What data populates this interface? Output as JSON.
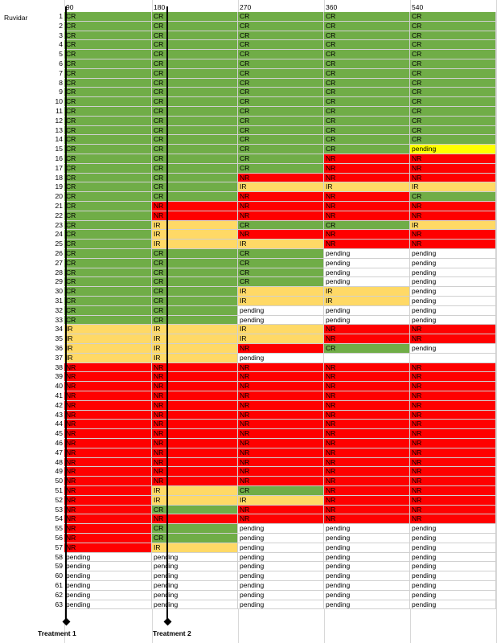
{
  "sheet_label": "Ruvidar",
  "columns": [
    "90",
    "180",
    "270",
    "360",
    "540"
  ],
  "treatments": [
    "Treatment 1",
    "Treatment 2"
  ],
  "colors": {
    "CR": "#70ad47",
    "NR": "#ff0000",
    "IR": "#ffd966",
    "pending_highlight": "#ffff00",
    "blank": "#ffffff"
  },
  "rows": [
    {
      "n": "1",
      "c": [
        "CR",
        "CR",
        "CR",
        "CR",
        "CR"
      ]
    },
    {
      "n": "2",
      "c": [
        "CR",
        "CR",
        "CR",
        "CR",
        "CR"
      ]
    },
    {
      "n": "3",
      "c": [
        "CR",
        "CR",
        "CR",
        "CR",
        "CR"
      ]
    },
    {
      "n": "4",
      "c": [
        "CR",
        "CR",
        "CR",
        "CR",
        "CR"
      ]
    },
    {
      "n": "5",
      "c": [
        "CR",
        "CR",
        "CR",
        "CR",
        "CR"
      ]
    },
    {
      "n": "6",
      "c": [
        "CR",
        "CR",
        "CR",
        "CR",
        "CR"
      ]
    },
    {
      "n": "7",
      "c": [
        "CR",
        "CR",
        "CR",
        "CR",
        "CR"
      ]
    },
    {
      "n": "8",
      "c": [
        "CR",
        "CR",
        "CR",
        "CR",
        "CR"
      ]
    },
    {
      "n": "9",
      "c": [
        "CR",
        "CR",
        "CR",
        "CR",
        "CR"
      ]
    },
    {
      "n": "10",
      "c": [
        "CR",
        "CR",
        "CR",
        "CR",
        "CR"
      ]
    },
    {
      "n": "11",
      "c": [
        "CR",
        "CR",
        "CR",
        "CR",
        "CR"
      ]
    },
    {
      "n": "12",
      "c": [
        "CR",
        "CR",
        "CR",
        "CR",
        "CR"
      ]
    },
    {
      "n": "13",
      "c": [
        "CR",
        "CR",
        "CR",
        "CR",
        "CR"
      ]
    },
    {
      "n": "14",
      "c": [
        "CR",
        "CR",
        "CR",
        "CR",
        "CR"
      ]
    },
    {
      "n": "15",
      "c": [
        "CR",
        "CR",
        "CR",
        "CR",
        "pending*"
      ]
    },
    {
      "n": "16",
      "c": [
        "CR",
        "CR",
        "CR",
        "NR",
        "NR"
      ]
    },
    {
      "n": "17",
      "c": [
        "CR",
        "CR",
        "CR",
        "NR",
        "NR"
      ]
    },
    {
      "n": "18",
      "c": [
        "CR",
        "CR",
        "NR",
        "NR",
        "NR"
      ]
    },
    {
      "n": "19",
      "c": [
        "CR",
        "CR",
        "IR",
        "IR",
        "IR"
      ]
    },
    {
      "n": "20",
      "c": [
        "CR",
        "CR",
        "NR",
        "NR",
        "CR"
      ]
    },
    {
      "n": "21",
      "c": [
        "CR",
        "NR",
        "NR",
        "NR",
        "NR"
      ]
    },
    {
      "n": "22",
      "c": [
        "CR",
        "NR",
        "NR",
        "NR",
        "NR"
      ]
    },
    {
      "n": "23",
      "c": [
        "CR",
        "IR",
        "CR",
        "CR",
        "IR"
      ]
    },
    {
      "n": "24",
      "c": [
        "CR",
        "IR",
        "NR",
        "NR",
        "NR"
      ]
    },
    {
      "n": "25",
      "c": [
        "CR",
        "IR",
        "IR",
        "NR",
        "NR"
      ]
    },
    {
      "n": "26",
      "c": [
        "CR",
        "CR",
        "CR",
        "pending",
        "pending"
      ]
    },
    {
      "n": "27",
      "c": [
        "CR",
        "CR",
        "CR",
        "pending",
        "pending"
      ]
    },
    {
      "n": "28",
      "c": [
        "CR",
        "CR",
        "CR",
        "pending",
        "pending"
      ]
    },
    {
      "n": "29",
      "c": [
        "CR",
        "CR",
        "CR",
        "pending",
        "pending"
      ]
    },
    {
      "n": "30",
      "c": [
        "CR",
        "CR",
        "IR",
        "IR",
        "pending"
      ]
    },
    {
      "n": "31",
      "c": [
        "CR",
        "CR",
        "IR",
        "IR",
        "pending"
      ]
    },
    {
      "n": "32",
      "c": [
        "CR",
        "CR",
        "pending",
        "pending",
        "pending"
      ]
    },
    {
      "n": "33",
      "c": [
        "CR",
        "CR",
        "pending",
        "pending",
        "pending"
      ]
    },
    {
      "n": "34",
      "c": [
        "IR",
        "IR",
        "IR",
        "NR",
        "NR"
      ]
    },
    {
      "n": "35",
      "c": [
        "IR",
        "IR",
        "IR",
        "NR",
        "NR"
      ]
    },
    {
      "n": "36",
      "c": [
        "IR",
        "IR",
        "NR",
        "CR",
        "pending"
      ]
    },
    {
      "n": "37",
      "c": [
        "IR",
        "IR",
        "pending",
        "",
        ""
      ]
    },
    {
      "n": "38",
      "c": [
        "NR",
        "NR",
        "NR",
        "NR",
        "NR"
      ]
    },
    {
      "n": "39",
      "c": [
        "NR",
        "NR",
        "NR",
        "NR",
        "NR"
      ]
    },
    {
      "n": "40",
      "c": [
        "NR",
        "NR",
        "NR",
        "NR",
        "NR"
      ]
    },
    {
      "n": "41",
      "c": [
        "NR",
        "NR",
        "NR",
        "NR",
        "NR"
      ]
    },
    {
      "n": "42",
      "c": [
        "NR",
        "NR",
        "NR",
        "NR",
        "NR"
      ]
    },
    {
      "n": "43",
      "c": [
        "NR",
        "NR",
        "NR",
        "NR",
        "NR"
      ]
    },
    {
      "n": "44",
      "c": [
        "NR",
        "NR",
        "NR",
        "NR",
        "NR"
      ]
    },
    {
      "n": "45",
      "c": [
        "NR",
        "NR",
        "NR",
        "NR",
        "NR"
      ]
    },
    {
      "n": "46",
      "c": [
        "NR",
        "NR",
        "NR",
        "NR",
        "NR"
      ]
    },
    {
      "n": "47",
      "c": [
        "NR",
        "NR",
        "NR",
        "NR",
        "NR"
      ]
    },
    {
      "n": "48",
      "c": [
        "NR",
        "NR",
        "NR",
        "NR",
        "NR"
      ]
    },
    {
      "n": "49",
      "c": [
        "NR",
        "NR",
        "NR",
        "NR",
        "NR"
      ]
    },
    {
      "n": "50",
      "c": [
        "NR",
        "NR",
        "NR",
        "NR",
        "NR"
      ]
    },
    {
      "n": "51",
      "c": [
        "NR",
        "IR",
        "CR",
        "NR",
        "NR"
      ]
    },
    {
      "n": "52",
      "c": [
        "NR",
        "IR",
        "IR",
        "NR",
        "NR"
      ]
    },
    {
      "n": "53",
      "c": [
        "NR",
        "CR",
        "NR",
        "NR",
        "NR"
      ]
    },
    {
      "n": "54",
      "c": [
        "NR",
        "NR",
        "NR",
        "NR",
        "NR"
      ]
    },
    {
      "n": "55",
      "c": [
        "NR",
        "CR",
        "pending",
        "pending",
        "pending"
      ]
    },
    {
      "n": "56",
      "c": [
        "NR",
        "CR",
        "pending",
        "pending",
        "pending"
      ]
    },
    {
      "n": "57",
      "c": [
        "NR",
        "IR",
        "pending",
        "pending",
        "pending"
      ]
    },
    {
      "n": "58",
      "c": [
        "pending",
        "pending",
        "pending",
        "pending",
        "pending"
      ]
    },
    {
      "n": "59",
      "c": [
        "pending",
        "pending",
        "pending",
        "pending",
        "pending"
      ]
    },
    {
      "n": "60",
      "c": [
        "pending",
        "pending",
        "pending",
        "pending",
        "pending"
      ]
    },
    {
      "n": "61",
      "c": [
        "pending",
        "pending",
        "pending",
        "pending",
        "pending"
      ]
    },
    {
      "n": "62",
      "c": [
        "pending",
        "pending",
        "pending",
        "pending",
        "pending"
      ]
    },
    {
      "n": "63",
      "c": [
        "pending",
        "pending",
        "pending",
        "pending",
        "pending"
      ]
    }
  ]
}
